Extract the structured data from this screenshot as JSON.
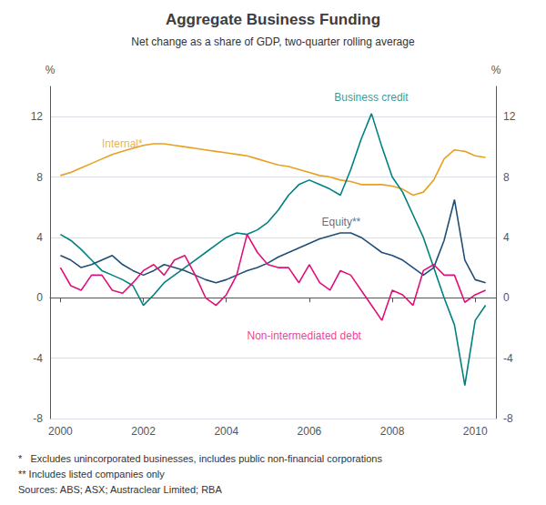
{
  "chart_data": {
    "type": "line",
    "title": "Aggregate Business Funding",
    "subtitle": "Net change as a share of GDP, two-quarter rolling average",
    "ylabel": "%",
    "y2label": "%",
    "x": [
      2000.0,
      2000.25,
      2000.5,
      2000.75,
      2001.0,
      2001.25,
      2001.5,
      2001.75,
      2002.0,
      2002.25,
      2002.5,
      2002.75,
      2003.0,
      2003.25,
      2003.5,
      2003.75,
      2004.0,
      2004.25,
      2004.5,
      2004.75,
      2005.0,
      2005.25,
      2005.5,
      2005.75,
      2006.0,
      2006.25,
      2006.5,
      2006.75,
      2007.0,
      2007.25,
      2007.5,
      2007.75,
      2008.0,
      2008.25,
      2008.5,
      2008.75,
      2009.0,
      2009.25,
      2009.5,
      2009.75,
      2010.0,
      2010.25
    ],
    "series": [
      {
        "name": "Internal*",
        "color": "#E8A020",
        "values": [
          8.1,
          8.3,
          8.6,
          8.9,
          9.2,
          9.5,
          9.7,
          9.9,
          10.1,
          10.2,
          10.2,
          10.1,
          10.0,
          9.9,
          9.8,
          9.7,
          9.6,
          9.5,
          9.4,
          9.2,
          9.0,
          8.8,
          8.7,
          8.5,
          8.3,
          8.1,
          8.0,
          7.8,
          7.7,
          7.5,
          7.5,
          7.5,
          7.4,
          7.2,
          6.8,
          7.0,
          7.8,
          9.2,
          9.8,
          9.7,
          9.4,
          9.3
        ]
      },
      {
        "name": "Business credit",
        "color": "#008080",
        "values": [
          4.2,
          3.8,
          3.2,
          2.5,
          1.8,
          1.5,
          1.2,
          0.8,
          -0.5,
          0.2,
          1.0,
          1.5,
          2.0,
          2.5,
          3.0,
          3.5,
          4.0,
          4.3,
          4.2,
          4.5,
          5.0,
          5.8,
          6.8,
          7.5,
          7.8,
          7.5,
          7.2,
          6.8,
          8.5,
          10.5,
          12.2,
          10.0,
          8.0,
          7.0,
          5.5,
          4.0,
          2.0,
          0.0,
          -1.8,
          -5.8,
          -1.5,
          -0.5
        ]
      },
      {
        "name": "Equity**",
        "color": "#1F4E79",
        "values": [
          2.8,
          2.5,
          2.0,
          2.2,
          2.5,
          2.8,
          2.2,
          1.8,
          1.5,
          1.8,
          2.2,
          2.0,
          1.8,
          1.5,
          1.2,
          1.0,
          1.2,
          1.5,
          1.8,
          2.0,
          2.3,
          2.7,
          3.0,
          3.3,
          3.6,
          3.9,
          4.1,
          4.3,
          4.3,
          4.0,
          3.5,
          3.0,
          2.8,
          2.5,
          2.0,
          1.5,
          2.0,
          3.8,
          6.5,
          2.5,
          1.2,
          1.0
        ]
      },
      {
        "name": "Non-intermediated debt",
        "color": "#E0107A",
        "values": [
          2.0,
          0.8,
          0.5,
          1.5,
          1.5,
          0.5,
          0.3,
          1.0,
          1.8,
          2.2,
          1.5,
          2.5,
          2.8,
          1.5,
          0.0,
          -0.5,
          0.2,
          1.5,
          4.2,
          3.0,
          2.2,
          2.0,
          2.0,
          1.0,
          2.2,
          1.0,
          0.5,
          1.8,
          1.5,
          0.5,
          -0.5,
          -1.5,
          0.5,
          0.2,
          -0.5,
          1.8,
          2.2,
          1.5,
          1.5,
          -0.3,
          0.2,
          0.5
        ]
      }
    ],
    "annotations": [
      {
        "text": "Internal*",
        "x": 2001.0,
        "y": 10.2,
        "color": "#E8A020"
      },
      {
        "text": "Business credit",
        "x": 2006.6,
        "y": 13.3,
        "color": "#008080"
      },
      {
        "text": "Equity**",
        "x": 2006.3,
        "y": 5.0,
        "color": "#1F4E79"
      },
      {
        "text": "Non-intermediated debt",
        "x": 2004.5,
        "y": -2.5,
        "color": "#E0107A"
      }
    ],
    "xlim": [
      1999.75,
      2010.5
    ],
    "xticks": [
      2000,
      2002,
      2004,
      2006,
      2008,
      2010
    ],
    "ylim": [
      -8,
      14
    ],
    "yticks": [
      -8,
      -4,
      0,
      4,
      8,
      12
    ],
    "y2lim": [
      -8,
      14
    ],
    "y2ticks": [
      -8,
      -4,
      0,
      4,
      8,
      12
    ],
    "grid": true,
    "footnotes": [
      "*   Excludes unincorporated businesses, includes public non-financial corporations",
      "** Includes listed companies only",
      "Sources: ABS; ASX; Austraclear Limited; RBA"
    ]
  }
}
